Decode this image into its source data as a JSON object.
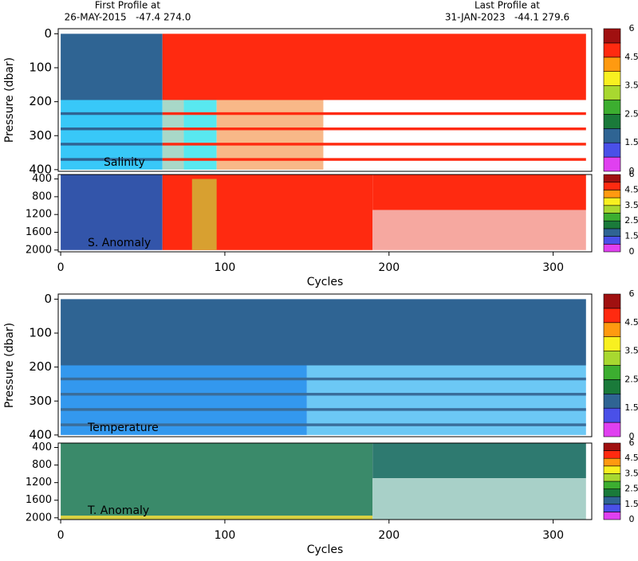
{
  "header": {
    "first_label": "First Profile at",
    "first_info": "26-MAY-2015   -47.4 274.0",
    "last_label": "Last Profile at",
    "last_info": "31-JAN-2023   -44.1 279.6"
  },
  "chart_data": [
    {
      "type": "heatmap",
      "title": "Salinity",
      "ylabel": "Pressure (dbar)",
      "xlim": [
        -1.5,
        323.5
      ],
      "ylim": [
        -15,
        405
      ],
      "yticks": [
        0,
        100,
        200,
        300,
        400
      ],
      "reverse_y": true,
      "colorbar": {
        "ticks": [
          0,
          1.5,
          2.5,
          3.5,
          4.5,
          6
        ],
        "colors": [
          "#e040f0",
          "#4a50e8",
          "#2f6493",
          "#1a7a3a",
          "#3cae30",
          "#a8d830",
          "#f8f020",
          "#ff9a10",
          "#ff2a10",
          "#a01010"
        ]
      },
      "cells": [
        {
          "x": [
            0,
            62
          ],
          "y": [
            0,
            195
          ],
          "color": "#2f6493"
        },
        {
          "x": [
            62,
            320
          ],
          "y": [
            0,
            195
          ],
          "color": "#ff2a10"
        },
        {
          "x": [
            0,
            62
          ],
          "y": [
            195,
            400
          ],
          "color": "#38c8f8"
        },
        {
          "x": [
            62,
            75
          ],
          "y": [
            195,
            400
          ],
          "color": "#a8d8c8"
        },
        {
          "x": [
            75,
            95
          ],
          "y": [
            195,
            400
          ],
          "color": "#58e8f0"
        },
        {
          "x": [
            95,
            160
          ],
          "y": [
            195,
            400
          ],
          "color": "#f8b888"
        },
        {
          "x": [
            0,
            62
          ],
          "y": [
            231,
            239
          ],
          "color": "#2f6493"
        },
        {
          "x": [
            62,
            320
          ],
          "y": [
            231,
            239
          ],
          "color": "#ff2a10"
        },
        {
          "x": [
            0,
            62
          ],
          "y": [
            276,
            284
          ],
          "color": "#2f6493"
        },
        {
          "x": [
            62,
            320
          ],
          "y": [
            276,
            284
          ],
          "color": "#ff2a10"
        },
        {
          "x": [
            0,
            62
          ],
          "y": [
            321,
            329
          ],
          "color": "#2f6493"
        },
        {
          "x": [
            62,
            320
          ],
          "y": [
            321,
            329
          ],
          "color": "#ff2a10"
        },
        {
          "x": [
            0,
            62
          ],
          "y": [
            366,
            374
          ],
          "color": "#2f6493"
        },
        {
          "x": [
            62,
            320
          ],
          "y": [
            366,
            374
          ],
          "color": "#ff2a10"
        }
      ]
    },
    {
      "type": "heatmap",
      "title": "S. Anomaly",
      "xlabel": "Cycles",
      "xlim": [
        -1.5,
        323.5
      ],
      "ylim": [
        300,
        2040
      ],
      "yticks": [
        400,
        800,
        1200,
        1600,
        2000
      ],
      "xticks": [
        0,
        100,
        200,
        300
      ],
      "reverse_y": true,
      "cells": [
        {
          "x": [
            0,
            62
          ],
          "y": [
            300,
            2000
          ],
          "color": "#3355aa"
        },
        {
          "x": [
            62,
            190
          ],
          "y": [
            300,
            2000
          ],
          "color": "#ff2a10"
        },
        {
          "x": [
            80,
            95
          ],
          "y": [
            400,
            2000
          ],
          "color": "#d8a030"
        },
        {
          "x": [
            190,
            320
          ],
          "y": [
            300,
            1100
          ],
          "color": "#ff2a10"
        },
        {
          "x": [
            190,
            320
          ],
          "y": [
            1100,
            2000
          ],
          "color": "#f6a8a0"
        }
      ]
    },
    {
      "type": "heatmap",
      "title": "Temperature",
      "ylabel": "Pressure (dbar)",
      "xlim": [
        -1.5,
        323.5
      ],
      "ylim": [
        -15,
        405
      ],
      "yticks": [
        0,
        100,
        200,
        300,
        400
      ],
      "reverse_y": true,
      "cells": [
        {
          "x": [
            0,
            320
          ],
          "y": [
            0,
            195
          ],
          "color": "#2f6493"
        },
        {
          "x": [
            0,
            150
          ],
          "y": [
            195,
            400
          ],
          "color": "#3398ee"
        },
        {
          "x": [
            150,
            320
          ],
          "y": [
            195,
            400
          ],
          "color": "#6cc8f5"
        },
        {
          "x": [
            0,
            320
          ],
          "y": [
            231,
            239
          ],
          "color": "#3a6d9a"
        },
        {
          "x": [
            0,
            320
          ],
          "y": [
            276,
            284
          ],
          "color": "#3a6d9a"
        },
        {
          "x": [
            0,
            320
          ],
          "y": [
            321,
            329
          ],
          "color": "#3a6d9a"
        },
        {
          "x": [
            0,
            320
          ],
          "y": [
            366,
            374
          ],
          "color": "#3a6d9a"
        }
      ]
    },
    {
      "type": "heatmap",
      "title": "T. Anomaly",
      "xlabel": "Cycles",
      "xlim": [
        -1.5,
        323.5
      ],
      "ylim": [
        300,
        2040
      ],
      "yticks": [
        400,
        800,
        1200,
        1600,
        2000
      ],
      "xticks": [
        0,
        100,
        200,
        300
      ],
      "reverse_y": true,
      "cells": [
        {
          "x": [
            0,
            190
          ],
          "y": [
            300,
            1950
          ],
          "color": "#3a8a6a"
        },
        {
          "x": [
            0,
            190
          ],
          "y": [
            1950,
            2040
          ],
          "color": "#d8d040"
        },
        {
          "x": [
            190,
            320
          ],
          "y": [
            300,
            1100
          ],
          "color": "#2e7a70"
        },
        {
          "x": [
            190,
            320
          ],
          "y": [
            1100,
            2040
          ],
          "color": "#a8d0c8"
        }
      ]
    }
  ]
}
